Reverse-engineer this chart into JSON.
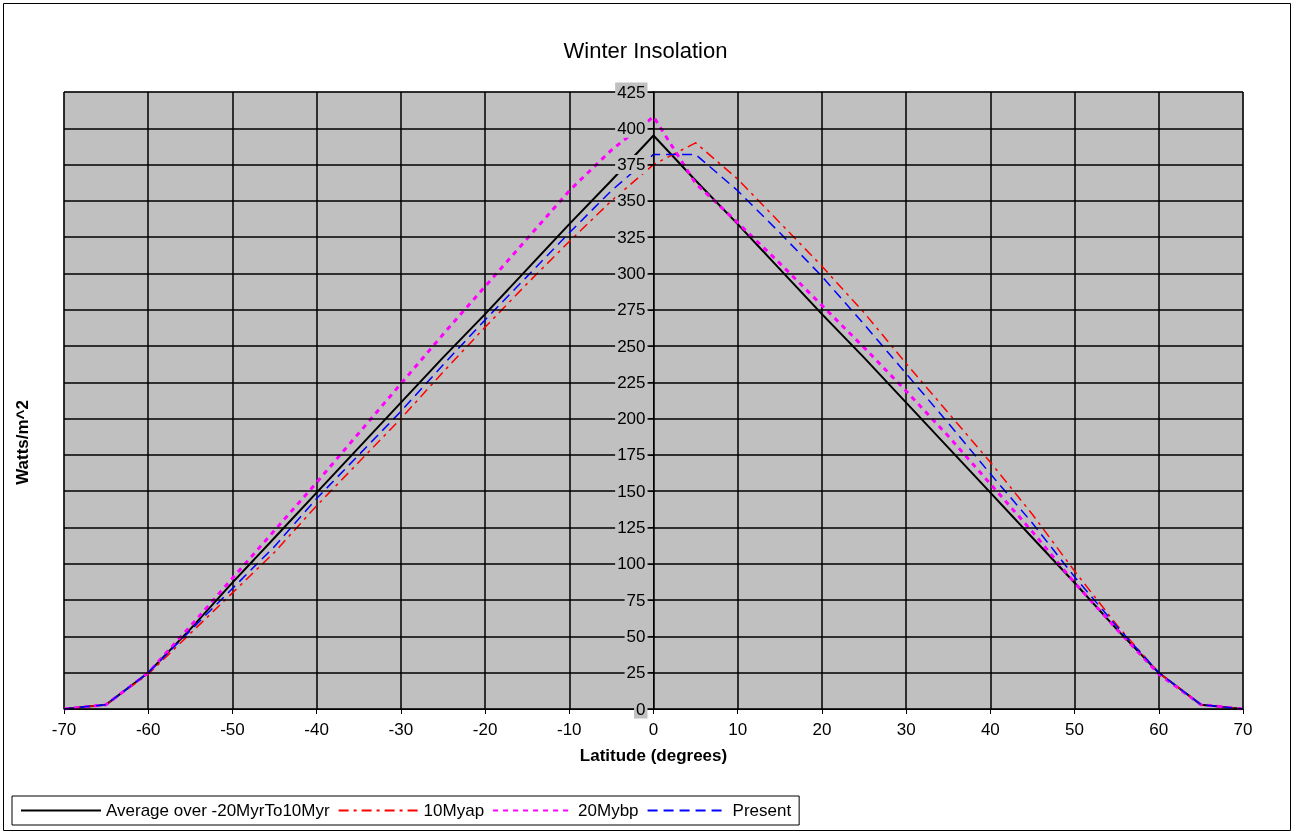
{
  "chart_data": {
    "type": "line",
    "title": "Winter Insolation",
    "xlabel": "Latitude (degrees)",
    "ylabel": "Watts/m^2",
    "x": [
      -70,
      -65,
      -60,
      -55,
      -50,
      -45,
      -40,
      -35,
      -30,
      -25,
      -20,
      -15,
      -10,
      -5,
      0,
      5,
      10,
      15,
      20,
      25,
      30,
      35,
      40,
      45,
      50,
      55,
      60,
      65,
      70
    ],
    "xlim": [
      -70,
      70
    ],
    "xticks": [
      -70,
      -60,
      -50,
      -40,
      -30,
      -20,
      -10,
      0,
      10,
      20,
      30,
      40,
      50,
      60,
      70
    ],
    "ylim": [
      0,
      425
    ],
    "yticks": [
      0,
      25,
      50,
      75,
      100,
      125,
      150,
      175,
      200,
      225,
      250,
      275,
      300,
      325,
      350,
      375,
      400,
      425
    ],
    "grid": true,
    "legend": "bottom",
    "marker": "none",
    "series": [
      {
        "name": "Average over -20MyrTo10Myr",
        "color": "#000000",
        "line_style": "solid",
        "values": [
          0,
          3,
          25,
          55,
          87,
          118,
          149,
          180,
          211,
          242,
          272,
          303,
          334,
          364,
          395,
          364,
          334,
          303,
          272,
          242,
          211,
          180,
          149,
          118,
          87,
          55,
          25,
          3,
          0
        ]
      },
      {
        "name": "10Myap",
        "color": "#ff0000",
        "line_style": "dashdot",
        "values": [
          0,
          3,
          24,
          52,
          80,
          108,
          140,
          170,
          200,
          232,
          263,
          293,
          322,
          350,
          375,
          390,
          365,
          335,
          305,
          273,
          238,
          204,
          170,
          134,
          95,
          58,
          25,
          3,
          0
        ]
      },
      {
        "name": "20Mybp",
        "color": "#ff00ff",
        "line_style": "dotted",
        "values": [
          0,
          3,
          25,
          57,
          90,
          123,
          156,
          190,
          224,
          258,
          291,
          324,
          357,
          385,
          408,
          362,
          335,
          307,
          278,
          249,
          219,
          188,
          155,
          122,
          87,
          55,
          24,
          3,
          0
        ]
      },
      {
        "name": "Present",
        "color": "#0000ff",
        "line_style": "dashed",
        "values": [
          0,
          3,
          25,
          54,
          83,
          112,
          145,
          175,
          205,
          237,
          268,
          298,
          328,
          357,
          382,
          382,
          357,
          328,
          298,
          265,
          231,
          197,
          162,
          128,
          91,
          57,
          25,
          3,
          0
        ]
      }
    ]
  }
}
